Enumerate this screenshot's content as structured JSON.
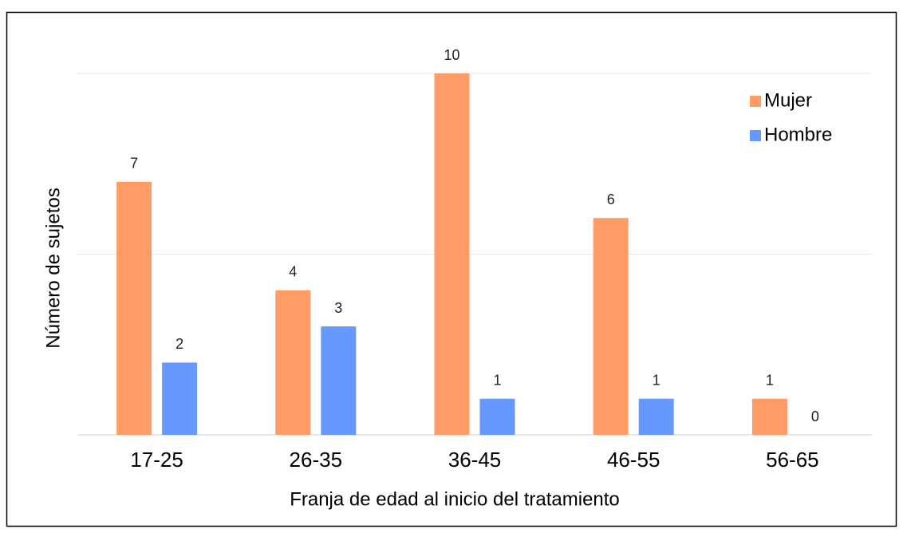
{
  "chart_data": {
    "type": "bar",
    "x_label": "Franja de edad al inicio del tratamiento",
    "y_label": "Número de sujetos",
    "categories": [
      "17-25",
      "26-35",
      "36-45",
      "46-55",
      "56-65"
    ],
    "series": [
      {
        "name": "Mujer",
        "color": "#ff9b66",
        "values": [
          7,
          4,
          10,
          6,
          1
        ]
      },
      {
        "name": "Hombre",
        "color": "#6699ff",
        "values": [
          2,
          3,
          1,
          1,
          0
        ]
      }
    ],
    "ylim": [
      0,
      10
    ],
    "yticks": [
      0,
      5,
      10
    ],
    "grid": true,
    "legend": "upper right"
  }
}
